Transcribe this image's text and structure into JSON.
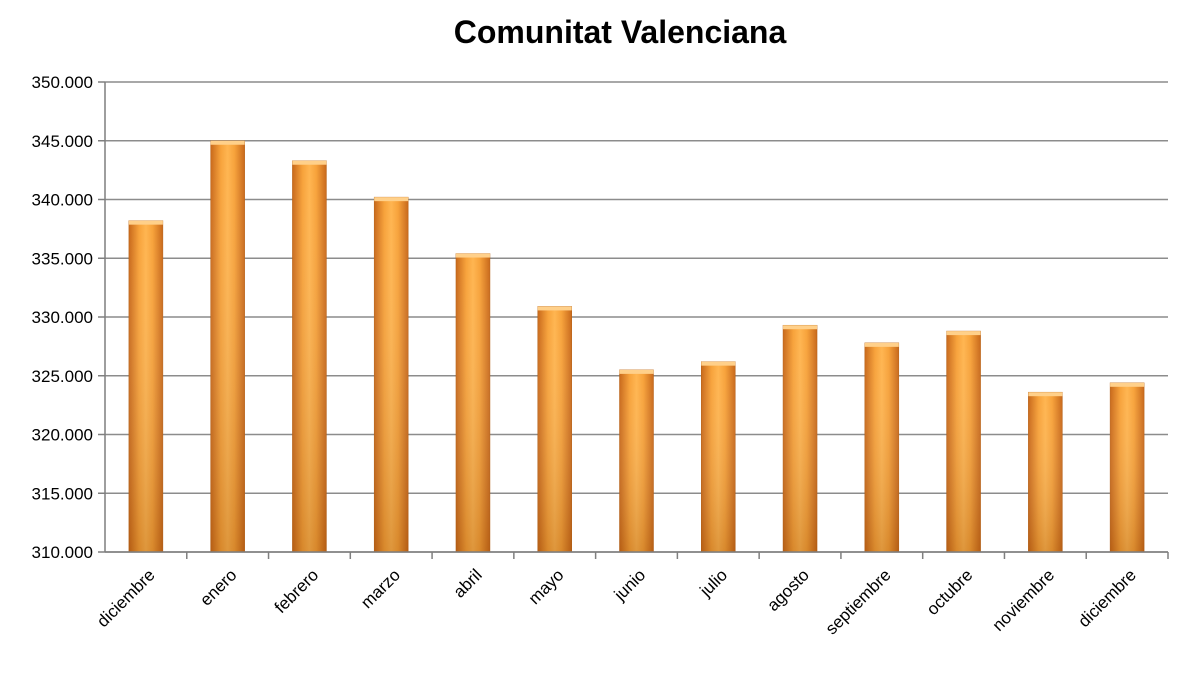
{
  "chart_data": {
    "type": "bar",
    "title": "Comunitat Valenciana",
    "xlabel": "",
    "ylabel": "",
    "categories": [
      "diciembre",
      "enero",
      "febrero",
      "marzo",
      "abril",
      "mayo",
      "junio",
      "julio",
      "agosto",
      "septiembre",
      "octubre",
      "noviembre",
      "diciembre"
    ],
    "values": [
      338200,
      345000,
      343300,
      340200,
      335400,
      330900,
      325500,
      326200,
      329300,
      327800,
      328800,
      323600,
      324400
    ],
    "ylim": [
      310000,
      350000
    ],
    "yticks": [
      310000,
      315000,
      320000,
      325000,
      330000,
      335000,
      340000,
      345000,
      350000
    ],
    "ytick_labels": [
      "310.000",
      "315.000",
      "320.000",
      "325.000",
      "330.000",
      "335.000",
      "340.000",
      "345.000",
      "350.000"
    ],
    "grid": true,
    "legend": "none",
    "colors": {
      "bar_light": "#ffb347",
      "bar_mid": "#f59a2e",
      "bar_dark": "#c8681a",
      "gridline": "#8c8c8c",
      "axis": "#7f7f7f"
    }
  }
}
